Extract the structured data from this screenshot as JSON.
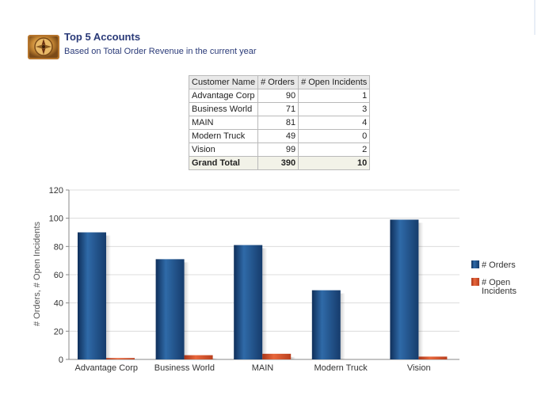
{
  "header": {
    "icon": "compass-icon",
    "title": "Top 5 Accounts",
    "subtitle": "Based on Total Order Revenue in the current year"
  },
  "table": {
    "columns": [
      "Customer Name",
      "# Orders",
      "# Open Incidents"
    ],
    "rows": [
      [
        "Advantage Corp",
        "90",
        "1"
      ],
      [
        "Business World",
        "71",
        "3"
      ],
      [
        "MAIN",
        "81",
        "4"
      ],
      [
        "Modern Truck",
        "49",
        "0"
      ],
      [
        "Vision",
        "99",
        "2"
      ]
    ],
    "total": [
      "Grand Total",
      "390",
      "10"
    ]
  },
  "chart_data": {
    "type": "bar",
    "categories": [
      "Advantage Corp",
      "Business World",
      "MAIN",
      "Modern Truck",
      "Vision"
    ],
    "series": [
      {
        "name": "# Orders",
        "values": [
          90,
          71,
          81,
          49,
          99
        ],
        "color": "#1f4e84"
      },
      {
        "name": "# Open Incidents",
        "values": [
          1,
          3,
          4,
          0,
          2
        ],
        "color": "#d9532c"
      }
    ],
    "ylabel": "# Orders, # Open Incidents",
    "xlabel": "",
    "ylim": [
      0,
      120
    ],
    "yticks": [
      0,
      20,
      40,
      60,
      80,
      100,
      120
    ],
    "grid": true,
    "legend": "right"
  }
}
